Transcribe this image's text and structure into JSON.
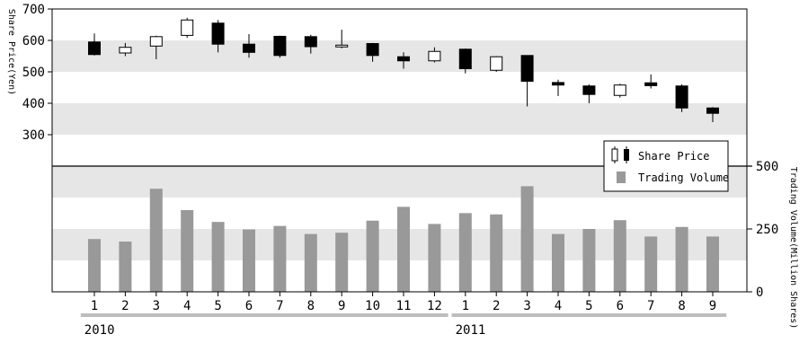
{
  "chart_data": [
    {
      "type": "candlestick",
      "ylabel": "Share Price(Yen)",
      "ylim": [
        200,
        700
      ],
      "yticks": [
        300,
        400,
        500,
        600,
        700
      ],
      "categories": [
        "1",
        "2",
        "3",
        "4",
        "5",
        "6",
        "7",
        "8",
        "9",
        "10",
        "11",
        "12",
        "1",
        "2",
        "3",
        "4",
        "5",
        "6",
        "7",
        "8",
        "9"
      ],
      "year_groups": [
        {
          "label": "2010",
          "from": 0,
          "to": 11
        },
        {
          "label": "2011",
          "from": 12,
          "to": 20
        }
      ],
      "series": [
        {
          "name": "Share Price",
          "ohlc": [
            {
              "open": 595,
              "high": 622,
              "low": 552,
              "close": 555
            },
            {
              "open": 560,
              "high": 592,
              "low": 550,
              "close": 578
            },
            {
              "open": 582,
              "high": 615,
              "low": 540,
              "close": 612
            },
            {
              "open": 616,
              "high": 672,
              "low": 608,
              "close": 665
            },
            {
              "open": 655,
              "high": 665,
              "low": 562,
              "close": 588
            },
            {
              "open": 588,
              "high": 620,
              "low": 545,
              "close": 562
            },
            {
              "open": 613,
              "high": 615,
              "low": 545,
              "close": 552
            },
            {
              "open": 612,
              "high": 618,
              "low": 558,
              "close": 580
            },
            {
              "open": 580,
              "high": 634,
              "low": 575,
              "close": 585
            },
            {
              "open": 590,
              "high": 592,
              "low": 532,
              "close": 552
            },
            {
              "open": 548,
              "high": 562,
              "low": 510,
              "close": 535
            },
            {
              "open": 535,
              "high": 578,
              "low": 530,
              "close": 565
            },
            {
              "open": 572,
              "high": 574,
              "low": 495,
              "close": 510
            },
            {
              "open": 505,
              "high": 550,
              "low": 500,
              "close": 548
            },
            {
              "open": 552,
              "high": 552,
              "low": 390,
              "close": 470
            },
            {
              "open": 466,
              "high": 475,
              "low": 423,
              "close": 458
            },
            {
              "open": 455,
              "high": 460,
              "low": 400,
              "close": 428
            },
            {
              "open": 425,
              "high": 462,
              "low": 418,
              "close": 458
            },
            {
              "open": 465,
              "high": 492,
              "low": 447,
              "close": 456
            },
            {
              "open": 455,
              "high": 460,
              "low": 372,
              "close": 385
            },
            {
              "open": 385,
              "high": 388,
              "low": 340,
              "close": 368
            }
          ]
        }
      ]
    },
    {
      "type": "bar",
      "ylabel": "Trading Volume(Million Shares)",
      "ylim": [
        0,
        500
      ],
      "yticks": [
        0,
        250,
        500
      ],
      "categories": [
        "1",
        "2",
        "3",
        "4",
        "5",
        "6",
        "7",
        "8",
        "9",
        "10",
        "11",
        "12",
        "1",
        "2",
        "3",
        "4",
        "5",
        "6",
        "7",
        "8",
        "9"
      ],
      "series": [
        {
          "name": "Trading Volume",
          "values": [
            210,
            200,
            410,
            325,
            278,
            248,
            262,
            230,
            235,
            283,
            338,
            270,
            313,
            308,
            420,
            230,
            250,
            285,
            220,
            258,
            220
          ]
        }
      ]
    }
  ],
  "legend": {
    "items": [
      {
        "label": "Share Price",
        "icon": "candle-pair-icon"
      },
      {
        "label": "Trading Volume",
        "icon": "gray-bar-icon"
      }
    ]
  },
  "colors": {
    "band": "#e6e6e6",
    "volume_bar": "#999999",
    "year_bar": "#bdbdbd",
    "candle_fill_down": "#000000",
    "candle_fill_up": "#ffffff"
  }
}
